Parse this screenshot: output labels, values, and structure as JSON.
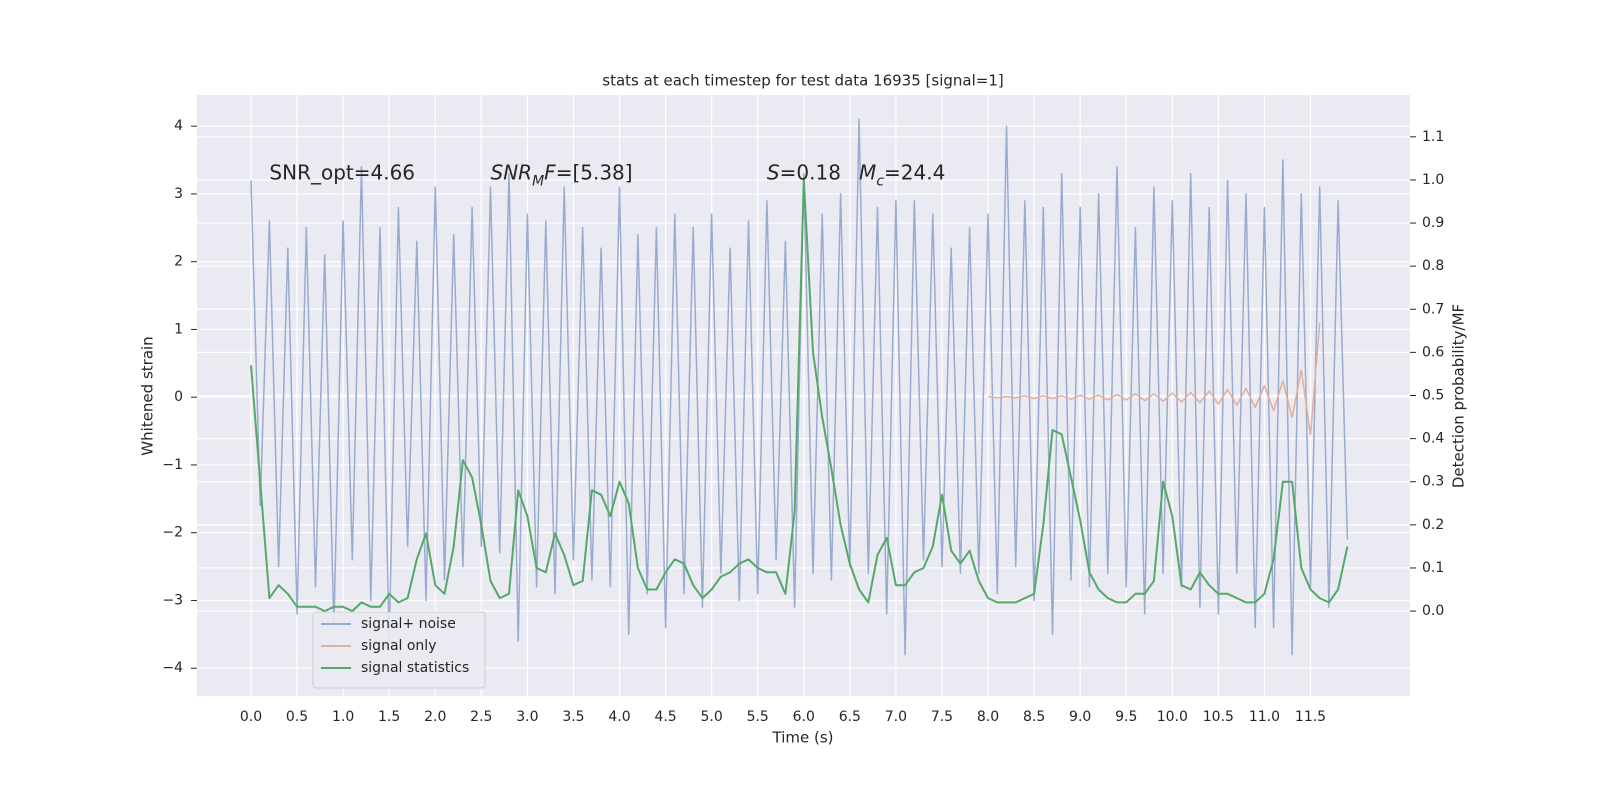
{
  "chart_data": {
    "type": "line",
    "title": "stats at each timestep for test data 16935 [signal=1]",
    "xlabel": "Time (s)",
    "ylabel": "Whitened strain",
    "y2label": "Detection probability/MF",
    "annotations": [
      [
        {
          "text": "SNR_opt=4.66",
          "style": "normal"
        }
      ],
      [
        {
          "text": "SNR",
          "style": "italic"
        },
        {
          "text": "M",
          "style": "italic-sub"
        },
        {
          "text": "F",
          "style": "italic"
        },
        {
          "text": "=[5.38]",
          "style": "normal"
        }
      ],
      [
        {
          "text": "S",
          "style": "italic"
        },
        {
          "text": "=0.18",
          "style": "normal"
        }
      ],
      [
        {
          "text": "M",
          "style": "italic"
        },
        {
          "text": "c",
          "style": "italic-sub"
        },
        {
          "text": "=24.4",
          "style": "normal"
        }
      ]
    ],
    "annotation_x": [
      0.2,
      2.6,
      5.6,
      6.6
    ],
    "annotation_y": 3.3,
    "x": [
      0.0,
      0.1,
      0.2,
      0.3,
      0.4,
      0.5,
      0.6,
      0.7,
      0.8,
      0.9,
      1.0,
      1.1,
      1.2,
      1.3,
      1.4,
      1.5,
      1.6,
      1.7,
      1.8,
      1.9,
      2.0,
      2.1,
      2.2,
      2.3,
      2.4,
      2.5,
      2.6,
      2.7,
      2.8,
      2.9,
      3.0,
      3.1,
      3.2,
      3.3,
      3.4,
      3.5,
      3.6,
      3.7,
      3.8,
      3.9,
      4.0,
      4.1,
      4.2,
      4.3,
      4.4,
      4.5,
      4.6,
      4.7,
      4.8,
      4.9,
      5.0,
      5.1,
      5.2,
      5.3,
      5.4,
      5.5,
      5.6,
      5.7,
      5.8,
      5.9,
      6.0,
      6.1,
      6.2,
      6.3,
      6.4,
      6.5,
      6.6,
      6.7,
      6.8,
      6.9,
      7.0,
      7.1,
      7.2,
      7.3,
      7.4,
      7.5,
      7.6,
      7.7,
      7.8,
      7.9,
      8.0,
      8.1,
      8.2,
      8.3,
      8.4,
      8.5,
      8.6,
      8.7,
      8.8,
      8.9,
      9.0,
      9.1,
      9.2,
      9.3,
      9.4,
      9.5,
      9.6,
      9.7,
      9.8,
      9.9,
      10.0,
      10.1,
      10.2,
      10.3,
      10.4,
      10.5,
      10.6,
      10.7,
      10.8,
      10.9,
      11.0,
      11.1,
      11.2,
      11.3,
      11.4,
      11.5,
      11.6,
      11.7,
      11.8,
      11.9
    ],
    "series": [
      {
        "name": "signal+ noise",
        "color": "#9aabd0",
        "axis": "y",
        "values": [
          3.2,
          -1.6,
          2.6,
          -2.5,
          2.2,
          -3.2,
          2.5,
          -2.8,
          2.1,
          -3.4,
          2.6,
          -2.4,
          3.4,
          -3.0,
          2.5,
          -3.6,
          2.8,
          -2.2,
          2.3,
          -3.0,
          3.1,
          -2.7,
          2.4,
          -2.5,
          2.8,
          -2.2,
          3.1,
          -2.3,
          3.3,
          -3.6,
          2.7,
          -2.8,
          2.6,
          -2.9,
          3.1,
          -2.4,
          2.5,
          -2.7,
          2.2,
          -2.8,
          3.1,
          -3.5,
          2.4,
          -2.9,
          2.5,
          -3.4,
          2.7,
          -2.9,
          2.5,
          -3.1,
          2.7,
          -2.6,
          2.2,
          -3.0,
          2.6,
          -2.9,
          2.9,
          -2.4,
          2.3,
          -3.1,
          3.3,
          -2.6,
          2.7,
          -2.7,
          3.0,
          -2.5,
          4.1,
          -2.6,
          2.8,
          -3.2,
          2.9,
          -3.8,
          2.9,
          -2.4,
          2.7,
          -2.5,
          2.2,
          -2.6,
          2.5,
          -2.6,
          2.7,
          -2.9,
          4.0,
          -2.5,
          2.9,
          -3.0,
          2.8,
          -3.5,
          3.3,
          -2.7,
          2.8,
          -2.8,
          3.0,
          -2.6,
          3.4,
          -2.8,
          2.5,
          -3.2,
          3.1,
          -2.6,
          2.9,
          -2.8,
          3.3,
          -3.1,
          2.8,
          -3.2,
          3.2,
          -2.6,
          3.0,
          -3.4,
          2.8,
          -3.4,
          3.5,
          -3.8,
          3.0,
          -2.8,
          3.1,
          -3.1,
          2.9,
          -2.1
        ]
      },
      {
        "name": "signal only",
        "color": "#e5ae98",
        "axis": "y",
        "values": [
          null,
          null,
          null,
          null,
          null,
          null,
          null,
          null,
          null,
          null,
          null,
          null,
          null,
          null,
          null,
          null,
          null,
          null,
          null,
          null,
          null,
          null,
          null,
          null,
          null,
          null,
          null,
          null,
          null,
          null,
          null,
          null,
          null,
          null,
          null,
          null,
          null,
          null,
          null,
          null,
          null,
          null,
          null,
          null,
          null,
          null,
          null,
          null,
          null,
          null,
          null,
          null,
          null,
          null,
          null,
          null,
          null,
          null,
          null,
          null,
          null,
          null,
          null,
          null,
          null,
          null,
          null,
          null,
          null,
          null,
          null,
          null,
          null,
          null,
          null,
          null,
          null,
          null,
          null,
          null,
          0.01,
          -0.01,
          0.01,
          -0.01,
          0.02,
          -0.02,
          0.02,
          -0.02,
          0.02,
          -0.03,
          0.03,
          -0.03,
          0.03,
          -0.04,
          0.04,
          -0.04,
          0.05,
          -0.05,
          0.05,
          -0.06,
          0.06,
          -0.07,
          0.07,
          -0.08,
          0.09,
          -0.1,
          0.11,
          -0.12,
          0.13,
          -0.15,
          0.17,
          -0.2,
          0.24,
          -0.3,
          0.4,
          -0.55,
          1.1,
          null,
          null,
          null
        ]
      },
      {
        "name": "signal statistics",
        "color": "#55a868",
        "axis": "y2",
        "values": [
          0.57,
          0.3,
          0.03,
          0.06,
          0.04,
          0.01,
          0.01,
          0.01,
          0.0,
          0.01,
          0.01,
          0.0,
          0.02,
          0.01,
          0.01,
          0.04,
          0.02,
          0.03,
          0.12,
          0.18,
          0.06,
          0.04,
          0.15,
          0.35,
          0.31,
          0.2,
          0.07,
          0.03,
          0.04,
          0.28,
          0.22,
          0.1,
          0.09,
          0.18,
          0.13,
          0.06,
          0.07,
          0.28,
          0.27,
          0.22,
          0.3,
          0.25,
          0.1,
          0.05,
          0.05,
          0.09,
          0.12,
          0.11,
          0.06,
          0.03,
          0.05,
          0.08,
          0.09,
          0.11,
          0.12,
          0.1,
          0.09,
          0.09,
          0.04,
          0.23,
          1.0,
          0.6,
          0.45,
          0.33,
          0.2,
          0.11,
          0.05,
          0.02,
          0.13,
          0.17,
          0.06,
          0.06,
          0.09,
          0.1,
          0.15,
          0.27,
          0.14,
          0.11,
          0.14,
          0.07,
          0.03,
          0.02,
          0.02,
          0.02,
          0.03,
          0.04,
          0.2,
          0.42,
          0.41,
          0.31,
          0.21,
          0.09,
          0.05,
          0.03,
          0.02,
          0.02,
          0.04,
          0.04,
          0.07,
          0.3,
          0.22,
          0.06,
          0.05,
          0.09,
          0.06,
          0.04,
          0.04,
          0.03,
          0.02,
          0.02,
          0.04,
          0.12,
          0.3,
          0.3,
          0.1,
          0.05,
          0.03,
          0.02,
          0.05,
          0.15
        ]
      }
    ],
    "xlim": [
      -0.586,
      12.58
    ],
    "ylim": [
      -4.41,
      4.46
    ],
    "y2lim": [
      -0.197,
      1.197
    ],
    "xticks": [
      {
        "value": 0,
        "label": "0.0"
      },
      0.5,
      {
        "value": 1,
        "label": "1.0"
      },
      1.5,
      {
        "value": 2,
        "label": "2.0"
      },
      2.5,
      {
        "value": 3,
        "label": "3.0"
      },
      3.5,
      {
        "value": 4,
        "label": "4.0"
      },
      4.5,
      {
        "value": 5,
        "label": "5.0"
      },
      5.5,
      {
        "value": 6,
        "label": "6.0"
      },
      6.5,
      {
        "value": 7,
        "label": "7.0"
      },
      7.5,
      {
        "value": 8,
        "label": "8.0"
      },
      8.5,
      {
        "value": 9,
        "label": "9.0"
      },
      9.5,
      {
        "value": 10,
        "label": "10.0"
      },
      10.5,
      {
        "value": 11,
        "label": "11.0"
      },
      11.5
    ],
    "yticks": [
      {
        "value": -4,
        "label": "−4"
      },
      {
        "value": -3,
        "label": "−3"
      },
      {
        "value": -2,
        "label": "−2"
      },
      {
        "value": -1,
        "label": "−1"
      },
      0,
      1,
      2,
      3,
      4
    ],
    "y2ticks": [
      {
        "value": 0,
        "label": "0.0"
      },
      0.1,
      0.2,
      0.3,
      0.4,
      0.5,
      0.6,
      0.7,
      0.8,
      0.9,
      {
        "value": 1,
        "label": "1.0"
      },
      1.1
    ],
    "grid": true,
    "legend": "lower left",
    "background": "#eaeaf2"
  }
}
